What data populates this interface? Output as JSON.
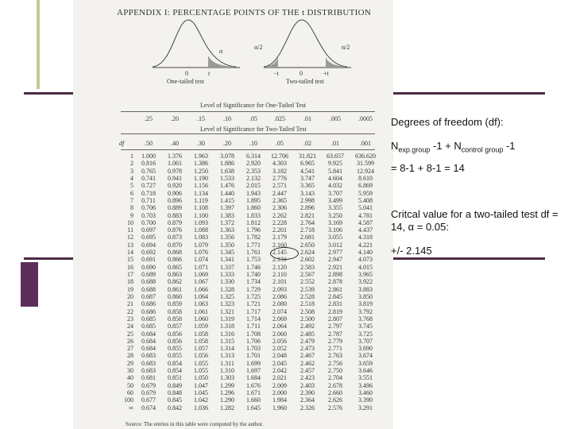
{
  "appendix": {
    "title": "APPENDIX I: PERCENTAGE POINTS OF THE t DISTRIBUTION",
    "curve_one": {
      "alpha": "α",
      "zero": "0",
      "t": "t",
      "caption": "One-tailed test"
    },
    "curve_two": {
      "alpha_left": "α/2",
      "alpha_right": "α/2",
      "minus_t": "−t",
      "zero": "0",
      "plus_t": "+t",
      "caption": "Two-tailed test"
    },
    "one_tailed_header": "Level of Significance for One-Tailed Test",
    "one_tailed_levels": [
      ".25",
      ".20",
      ".15",
      ".10",
      ".05",
      ".025",
      ".01",
      ".005",
      ".0005"
    ],
    "two_tailed_header": "Level of Significance for Two-Tailed Test",
    "df_label": "df",
    "two_tailed_levels": [
      ".50",
      ".40",
      ".30",
      ".20",
      ".10",
      ".05",
      ".02",
      ".01",
      ".001"
    ],
    "rows": [
      [
        "1",
        "1.000",
        "1.376",
        "1.963",
        "3.078",
        "6.314",
        "12.706",
        "31.821",
        "63.657",
        "636.620"
      ],
      [
        "2",
        "0.816",
        "1.061",
        "1.386",
        "1.886",
        "2.920",
        "4.303",
        "6.965",
        "9.925",
        "31.599"
      ],
      [
        "3",
        "0.765",
        "0.978",
        "1.250",
        "1.638",
        "2.353",
        "3.182",
        "4.541",
        "5.841",
        "12.924"
      ],
      [
        "4",
        "0.741",
        "0.941",
        "1.190",
        "1.533",
        "2.132",
        "2.776",
        "3.747",
        "4.604",
        "8.610"
      ],
      [
        "5",
        "0.727",
        "0.920",
        "1.156",
        "1.476",
        "2.015",
        "2.571",
        "3.365",
        "4.032",
        "6.869"
      ],
      [
        "6",
        "0.718",
        "0.906",
        "1.134",
        "1.440",
        "1.943",
        "2.447",
        "3.143",
        "3.707",
        "5.959"
      ],
      [
        "7",
        "0.711",
        "0.896",
        "1.119",
        "1.415",
        "1.895",
        "2.365",
        "2.998",
        "3.499",
        "5.408"
      ],
      [
        "8",
        "0.706",
        "0.889",
        "1.108",
        "1.397",
        "1.860",
        "2.306",
        "2.896",
        "3.355",
        "5.041"
      ],
      [
        "9",
        "0.703",
        "0.883",
        "1.100",
        "1.383",
        "1.833",
        "2.262",
        "2.821",
        "3.250",
        "4.781"
      ],
      [
        "10",
        "0.700",
        "0.879",
        "1.093",
        "1.372",
        "1.812",
        "2.228",
        "2.764",
        "3.169",
        "4.587"
      ],
      [
        "11",
        "0.697",
        "0.876",
        "1.088",
        "1.363",
        "1.796",
        "2.201",
        "2.718",
        "3.106",
        "4.437"
      ],
      [
        "12",
        "0.695",
        "0.873",
        "1.083",
        "1.356",
        "1.782",
        "2.179",
        "2.681",
        "3.055",
        "4.318"
      ],
      [
        "13",
        "0.694",
        "0.870",
        "1.079",
        "1.350",
        "1.771",
        "2.160",
        "2.650",
        "3.012",
        "4.221"
      ],
      [
        "14",
        "0.692",
        "0.868",
        "1.076",
        "1.345",
        "1.761",
        "2.145",
        "2.624",
        "2.977",
        "4.140"
      ],
      [
        "15",
        "0.691",
        "0.866",
        "1.074",
        "1.341",
        "1.753",
        "2.131",
        "2.602",
        "2.947",
        "4.073"
      ],
      [
        "16",
        "0.690",
        "0.865",
        "1.071",
        "1.337",
        "1.746",
        "2.120",
        "2.583",
        "2.921",
        "4.015"
      ],
      [
        "17",
        "0.689",
        "0.863",
        "1.069",
        "1.333",
        "1.740",
        "2.110",
        "2.567",
        "2.898",
        "3.965"
      ],
      [
        "18",
        "0.688",
        "0.862",
        "1.067",
        "1.330",
        "1.734",
        "2.101",
        "2.552",
        "2.878",
        "3.922"
      ],
      [
        "19",
        "0.688",
        "0.861",
        "1.066",
        "1.328",
        "1.729",
        "2.093",
        "2.539",
        "2.861",
        "3.883"
      ],
      [
        "20",
        "0.687",
        "0.860",
        "1.064",
        "1.325",
        "1.725",
        "2.086",
        "2.528",
        "2.845",
        "3.850"
      ],
      [
        "21",
        "0.686",
        "0.859",
        "1.063",
        "1.323",
        "1.721",
        "2.080",
        "2.518",
        "2.831",
        "3.819"
      ],
      [
        "22",
        "0.686",
        "0.858",
        "1.061",
        "1.321",
        "1.717",
        "2.074",
        "2.508",
        "2.819",
        "3.792"
      ],
      [
        "23",
        "0.685",
        "0.858",
        "1.060",
        "1.319",
        "1.714",
        "2.069",
        "2.500",
        "2.807",
        "3.768"
      ],
      [
        "24",
        "0.685",
        "0.857",
        "1.059",
        "1.318",
        "1.711",
        "2.064",
        "2.492",
        "2.797",
        "3.745"
      ],
      [
        "25",
        "0.684",
        "0.856",
        "1.058",
        "1.316",
        "1.708",
        "2.060",
        "2.485",
        "2.787",
        "3.725"
      ],
      [
        "26",
        "0.684",
        "0.856",
        "1.058",
        "1.315",
        "1.706",
        "2.056",
        "2.479",
        "2.779",
        "3.707"
      ],
      [
        "27",
        "0.684",
        "0.855",
        "1.057",
        "1.314",
        "1.703",
        "2.052",
        "2.473",
        "2.771",
        "3.690"
      ],
      [
        "28",
        "0.683",
        "0.855",
        "1.056",
        "1.313",
        "1.701",
        "2.048",
        "2.467",
        "2.763",
        "3.674"
      ],
      [
        "29",
        "0.683",
        "0.854",
        "1.055",
        "1.311",
        "1.699",
        "2.045",
        "2.462",
        "2.756",
        "3.659"
      ],
      [
        "30",
        "0.683",
        "0.854",
        "1.055",
        "1.310",
        "1.697",
        "2.042",
        "2.457",
        "2.750",
        "3.646"
      ],
      [
        "40",
        "0.681",
        "0.851",
        "1.050",
        "1.303",
        "1.684",
        "2.021",
        "2.423",
        "2.704",
        "3.551"
      ],
      [
        "50",
        "0.679",
        "0.849",
        "1.047",
        "1.299",
        "1.676",
        "2.009",
        "2.403",
        "2.678",
        "3.496"
      ],
      [
        "60",
        "0.679",
        "0.848",
        "1.045",
        "1.296",
        "1.671",
        "2.000",
        "2.390",
        "2.660",
        "3.460"
      ],
      [
        "100",
        "0.677",
        "0.845",
        "1.042",
        "1.290",
        "1.660",
        "1.984",
        "2.364",
        "2.626",
        "3.390"
      ],
      [
        "∞",
        "0.674",
        "0.842",
        "1.036",
        "1.282",
        "1.645",
        "1.960",
        "2.326",
        "2.576",
        "3.291"
      ]
    ],
    "source": "Source: The entries in this table were computed by the author."
  },
  "notes": {
    "df_heading": "Degrees of freedom (df):",
    "formula": [
      "N",
      "exp.group",
      " -1 + N",
      "control group",
      " -1"
    ],
    "calc": "= 8-1 + 8-1 = 14",
    "critical_text": "Critcal value for a two-tailed test df = 14, α = 0.05:",
    "critical_value": "+/- 2.145"
  }
}
